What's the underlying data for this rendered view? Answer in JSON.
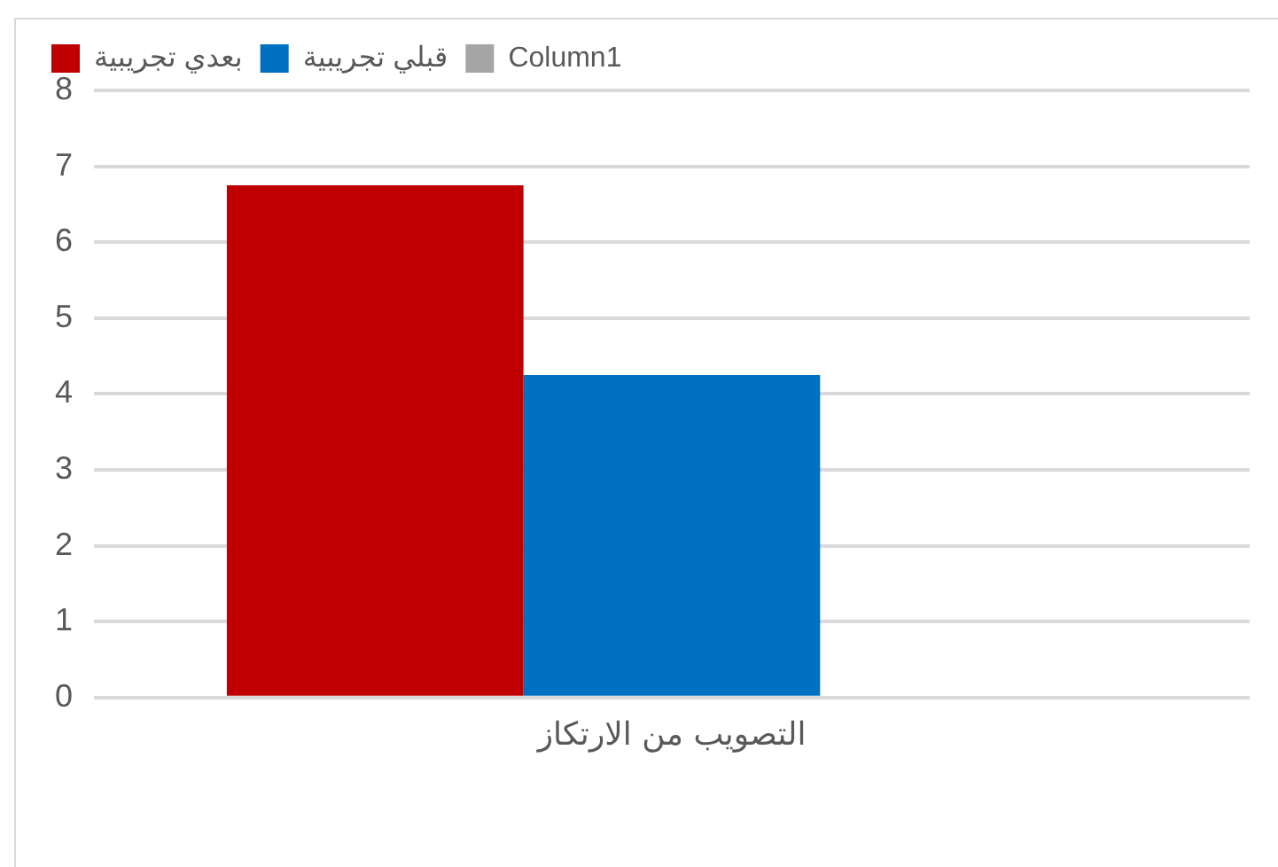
{
  "chart_data": {
    "type": "bar",
    "categories": [
      "التصويب من الارتكاز"
    ],
    "series": [
      {
        "name": "بعدي تجريبية",
        "color": "#c00000",
        "values": [
          6.75
        ]
      },
      {
        "name": "قبلي تجريبية",
        "color": "#0070c0",
        "values": [
          4.25
        ]
      },
      {
        "name": "Column1",
        "color": "#a5a5a5",
        "values": [
          null
        ]
      }
    ],
    "ylim": [
      0,
      8
    ],
    "yticks": [
      0,
      1,
      2,
      3,
      4,
      5,
      6,
      7,
      8
    ],
    "grid": "y",
    "legend": "top left"
  }
}
